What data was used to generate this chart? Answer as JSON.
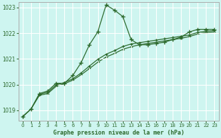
{
  "title": "Graphe pression niveau de la mer (hPa)",
  "background_color": "#cef5f0",
  "plot_bg_color": "#cef5f0",
  "grid_color": "#ffffff",
  "line_color": "#2d6a2d",
  "border_color": "#aaaaaa",
  "xlim": [
    -0.5,
    23.5
  ],
  "ylim": [
    1018.6,
    1023.2
  ],
  "yticks": [
    1019,
    1020,
    1021,
    1022,
    1023
  ],
  "xticks": [
    0,
    1,
    2,
    3,
    4,
    5,
    6,
    7,
    8,
    9,
    10,
    11,
    12,
    13,
    14,
    15,
    16,
    17,
    18,
    19,
    20,
    21,
    22,
    23
  ],
  "series1_x": [
    0,
    1,
    2,
    3,
    4,
    5,
    6,
    7,
    8,
    9,
    10,
    11,
    12,
    13,
    14,
    15,
    16,
    17,
    18,
    19,
    20,
    21,
    22,
    23
  ],
  "series1_y": [
    1018.75,
    1019.05,
    1019.65,
    1019.75,
    1020.05,
    1020.05,
    1020.35,
    1020.85,
    1021.55,
    1022.05,
    1023.1,
    1022.9,
    1022.65,
    1021.75,
    1021.55,
    1021.55,
    1021.6,
    1021.65,
    1021.75,
    1021.85,
    1022.05,
    1022.15,
    1022.15,
    1022.15
  ],
  "series2_x": [
    0,
    1,
    2,
    3,
    4,
    5,
    6,
    7,
    8,
    9,
    10,
    11,
    12,
    13,
    14,
    15,
    16,
    17,
    18,
    19,
    20,
    21,
    22,
    23
  ],
  "series2_y": [
    1018.75,
    1019.05,
    1019.62,
    1019.7,
    1019.98,
    1020.08,
    1020.22,
    1020.45,
    1020.72,
    1020.98,
    1021.18,
    1021.32,
    1021.48,
    1021.58,
    1021.63,
    1021.68,
    1021.73,
    1021.78,
    1021.83,
    1021.88,
    1021.93,
    1022.03,
    1022.08,
    1022.1
  ],
  "series3_x": [
    0,
    1,
    2,
    3,
    4,
    5,
    6,
    7,
    8,
    9,
    10,
    11,
    12,
    13,
    14,
    15,
    16,
    17,
    18,
    19,
    20,
    21,
    22,
    23
  ],
  "series3_y": [
    1018.75,
    1019.05,
    1019.58,
    1019.65,
    1019.93,
    1020.03,
    1020.17,
    1020.38,
    1020.62,
    1020.87,
    1021.07,
    1021.21,
    1021.37,
    1021.47,
    1021.55,
    1021.6,
    1021.65,
    1021.7,
    1021.75,
    1021.8,
    1021.87,
    1021.97,
    1022.03,
    1022.05
  ]
}
